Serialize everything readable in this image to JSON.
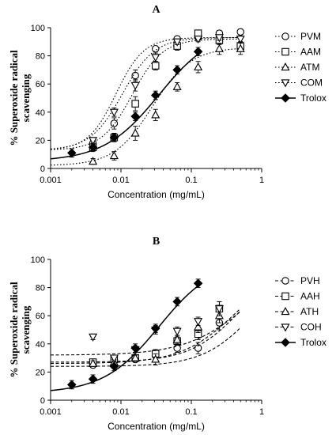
{
  "figure": {
    "colors": {
      "ink": "#000000",
      "background": "#ffffff"
    }
  },
  "chart_data": [
    {
      "type": "scatter",
      "title": "A",
      "xlabel": "Concentration (mg/mL)",
      "ylabel": [
        "% Superoxide radical",
        "scavenging"
      ],
      "xscale": "log",
      "xlim": [
        0.001,
        1
      ],
      "ylim": [
        0,
        100
      ],
      "xticks": [
        0.001,
        0.01,
        0.1,
        1
      ],
      "xtick_labels": [
        "0.001",
        "0.01",
        "0.1",
        "1"
      ],
      "yticks": [
        0,
        20,
        40,
        60,
        80,
        100
      ],
      "grid": false,
      "legend_position": "right",
      "series": [
        {
          "name": "PVM",
          "marker": "circle",
          "line": "dotted",
          "x": [
            0.004,
            0.008,
            0.016,
            0.031,
            0.063,
            0.125,
            0.25,
            0.5
          ],
          "y": [
            18,
            32,
            66,
            85,
            92,
            93,
            96,
            97
          ],
          "err": [
            2,
            4,
            4,
            2,
            2,
            2,
            2,
            2
          ],
          "fit": {
            "bottom": 13,
            "top": 93,
            "ec50": 0.0085,
            "hill": 2.2
          }
        },
        {
          "name": "AAM",
          "marker": "square",
          "line": "dotted",
          "x": [
            0.004,
            0.008,
            0.016,
            0.031,
            0.063,
            0.125,
            0.25,
            0.5
          ],
          "y": [
            15,
            22,
            46,
            73,
            87,
            96,
            91,
            87
          ],
          "err": [
            2,
            3,
            5,
            3,
            3,
            2,
            3,
            3
          ],
          "fit": {
            "bottom": 13,
            "top": 92,
            "ec50": 0.0145,
            "hill": 2.0
          }
        },
        {
          "name": "ATM",
          "marker": "triangle-up",
          "line": "dotted",
          "x": [
            0.004,
            0.008,
            0.016,
            0.031,
            0.063,
            0.125,
            0.25,
            0.5
          ],
          "y": [
            5,
            9,
            25,
            38,
            58,
            72,
            85,
            85
          ],
          "err": [
            2,
            3,
            5,
            4,
            3,
            4,
            4,
            4
          ],
          "fit": {
            "bottom": 2,
            "top": 86,
            "ec50": 0.028,
            "hill": 1.6
          }
        },
        {
          "name": "COM",
          "marker": "triangle-down",
          "line": "dotted",
          "x": [
            0.004,
            0.008,
            0.016,
            0.031,
            0.063,
            0.125,
            0.25,
            0.5
          ],
          "y": [
            20,
            40,
            59,
            79,
            90,
            92,
            93,
            92
          ],
          "err": [
            2,
            3,
            4,
            3,
            2,
            2,
            2,
            2
          ],
          "fit": {
            "bottom": 13,
            "top": 93,
            "ec50": 0.0105,
            "hill": 1.9
          }
        },
        {
          "name": "Trolox",
          "marker": "diamond",
          "line": "solid",
          "x": [
            0.002,
            0.004,
            0.008,
            0.016,
            0.031,
            0.063,
            0.125
          ],
          "y": [
            11,
            15,
            22,
            37,
            52,
            70,
            83
          ],
          "err": [
            3,
            3,
            3,
            3,
            3,
            3,
            3
          ],
          "xmax": 0.125,
          "fit": {
            "bottom": 5,
            "top": 100,
            "ec50": 0.035,
            "hill": 1.1
          }
        }
      ]
    },
    {
      "type": "scatter",
      "title": "B",
      "xlabel": "Concentration (mg/mL)",
      "ylabel": [
        "% Superoxide radical",
        "scavenging"
      ],
      "xscale": "log",
      "xlim": [
        0.001,
        1
      ],
      "ylim": [
        0,
        100
      ],
      "xticks": [
        0.001,
        0.01,
        0.1,
        1
      ],
      "xtick_labels": [
        "0.001",
        "0.01",
        "0.1",
        "1"
      ],
      "yticks": [
        0,
        20,
        40,
        60,
        80,
        100
      ],
      "grid": false,
      "legend_position": "right",
      "series": [
        {
          "name": "PVH",
          "marker": "circle",
          "line": "dashed",
          "x": [
            0.004,
            0.008,
            0.016,
            0.031,
            0.063,
            0.125,
            0.25
          ],
          "y": [
            25,
            28,
            29,
            32,
            37,
            37,
            55
          ],
          "err": [
            2,
            2,
            2,
            3,
            3,
            4,
            5
          ],
          "fit": {
            "bottom": 24,
            "top": 100,
            "ec50": 0.8,
            "hill": 1.2
          }
        },
        {
          "name": "AAH",
          "marker": "square",
          "line": "dashed",
          "x": [
            0.004,
            0.008,
            0.016,
            0.031,
            0.063,
            0.125,
            0.25
          ],
          "y": [
            27,
            29,
            30,
            33,
            42,
            47,
            65
          ],
          "err": [
            2,
            2,
            2,
            3,
            3,
            4,
            5
          ],
          "fit": {
            "bottom": 27,
            "top": 100,
            "ec50": 0.5,
            "hill": 1.2
          }
        },
        {
          "name": "ATH",
          "marker": "triangle-up",
          "line": "dashed",
          "x": [
            0.004,
            0.008,
            0.016,
            0.031,
            0.063,
            0.125,
            0.25
          ],
          "y": [
            26,
            27,
            30,
            29,
            43,
            52,
            60
          ],
          "err": [
            2,
            2,
            2,
            4,
            3,
            4,
            5
          ],
          "fit": {
            "bottom": 26,
            "top": 100,
            "ec50": 0.45,
            "hill": 1.1
          }
        },
        {
          "name": "COH",
          "marker": "triangle-down",
          "line": "dashed",
          "x": [
            0.004,
            0.008,
            0.016,
            0.031,
            0.063,
            0.125,
            0.25
          ],
          "y": [
            45,
            30,
            36,
            50,
            49,
            56,
            65
          ],
          "err": [
            2,
            2,
            2,
            3,
            3,
            3,
            5
          ],
          "fit": {
            "bottom": 32,
            "top": 100,
            "ec50": 0.6,
            "hill": 1.0
          }
        },
        {
          "name": "Trolox",
          "marker": "diamond",
          "line": "solid",
          "x": [
            0.002,
            0.004,
            0.008,
            0.016,
            0.031,
            0.063,
            0.125
          ],
          "y": [
            11,
            15,
            24,
            37,
            51,
            70,
            83
          ],
          "err": [
            3,
            3,
            3,
            3,
            3,
            3,
            3
          ],
          "xmax": 0.125,
          "fit": {
            "bottom": 5,
            "top": 100,
            "ec50": 0.035,
            "hill": 1.1
          }
        }
      ]
    }
  ]
}
